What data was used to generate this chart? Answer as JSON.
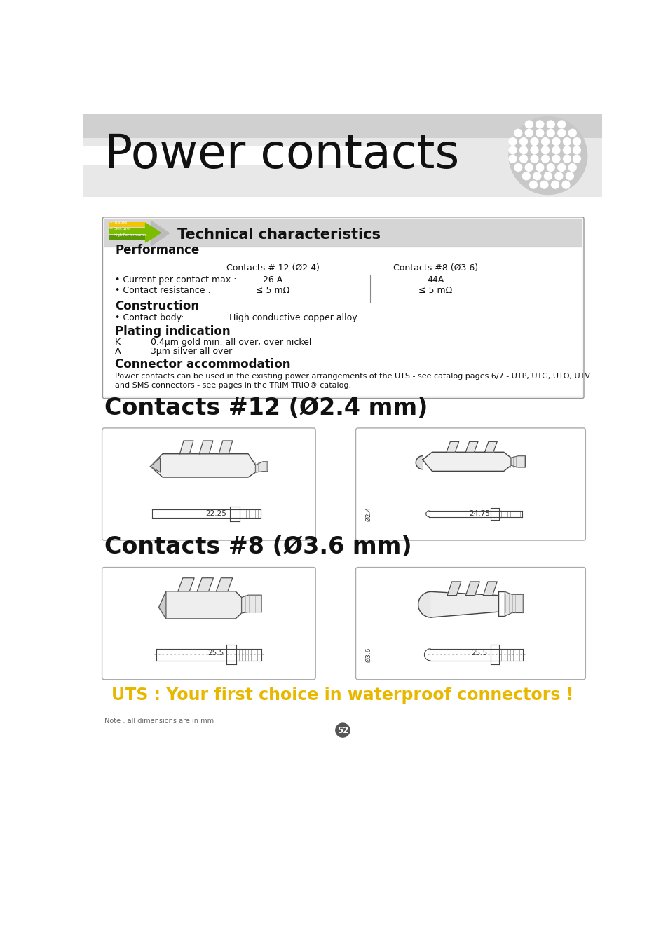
{
  "page_title": "Power contacts",
  "bg_color": "#f0f0f0",
  "tech_box_title": "Technical characteristics",
  "perf_title": "Performance",
  "perf_col1_header": "Contacts # 12 (Ø2.4)",
  "perf_col2_header": "Contacts #8 (Ø3.6)",
  "perf_row1_label": "• Current per contact max.:",
  "perf_row1_col1": "26 A",
  "perf_row1_col2": "44A",
  "perf_row2_label": "• Contact resistance :",
  "perf_row2_col1": "≤ 5 mΩ",
  "perf_row2_col2": "≤ 5 mΩ",
  "const_title": "Construction",
  "const_row1_label": "• Contact body:",
  "const_row1_val": "High conductive copper alloy",
  "plating_title": "Plating indication",
  "plating_k_label": "K",
  "plating_k_val": "0.4μm gold min. all over, over nickel",
  "plating_a_label": "A",
  "plating_a_val": "3μm silver all over",
  "conn_title": "Connector accommodation",
  "conn_text1": "Power contacts can be used in the existing power arrangements of the UTS - see catalog pages 6/7 - UTP, UTG, UTO, UTV",
  "conn_text2": "and SMS connectors - see pages in the TRIM TRIO® catalog.",
  "contacts12_title": "Contacts #12 (Ø2.4 mm)",
  "contacts8_title": "Contacts #8 (Ø3.6 mm)",
  "dim12_left": "22.25",
  "dim12_right": "24.75",
  "dim12_diam": "Ø2.4",
  "dim8_left": "25.5",
  "dim8_right": "25.5",
  "dim8_diam": "Ø3.6",
  "uts_slogan": "UTS : Your first choice in waterproof connectors !",
  "note_text": "Note : all dimensions are in mm",
  "page_num": "52"
}
